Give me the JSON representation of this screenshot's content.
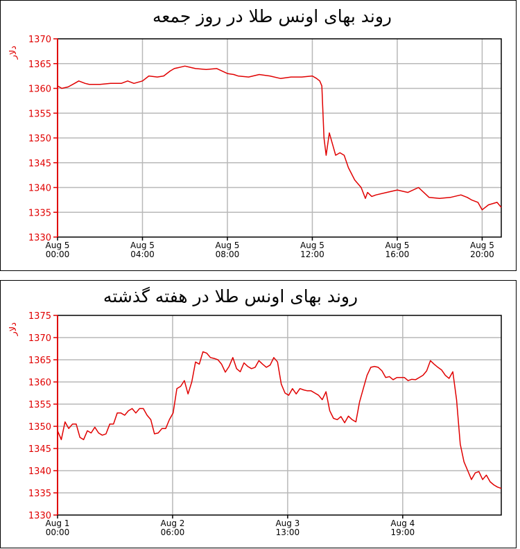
{
  "chart_data": [
    {
      "type": "line",
      "title": "روند بهای اونس طلا در روز جمعه",
      "ylabel": "دلار",
      "xlabel": "",
      "ylim": [
        1330,
        1370
      ],
      "yticks": [
        1330,
        1335,
        1340,
        1345,
        1350,
        1355,
        1360,
        1365,
        1370
      ],
      "xlim": [
        0,
        20.9
      ],
      "xticks": [
        {
          "x": 0,
          "label": [
            "Aug 5",
            "00:00"
          ]
        },
        {
          "x": 4,
          "label": [
            "Aug 5",
            "04:00"
          ]
        },
        {
          "x": 8,
          "label": [
            "Aug 5",
            "08:00"
          ]
        },
        {
          "x": 12,
          "label": [
            "Aug 5",
            "12:00"
          ]
        },
        {
          "x": 16,
          "label": [
            "Aug 5",
            "16:00"
          ]
        },
        {
          "x": 20,
          "label": [
            "Aug 5",
            "20:00"
          ]
        }
      ],
      "grid": true,
      "line_color": "#e00000",
      "x": [
        0,
        0.2,
        0.5,
        0.8,
        1,
        1.3,
        1.5,
        2,
        2.5,
        3,
        3.3,
        3.6,
        4,
        4.3,
        4.7,
        5,
        5.3,
        5.5,
        5.8,
        6,
        6.3,
        6.5,
        7,
        7.5,
        8,
        8.3,
        8.5,
        9,
        9.5,
        10,
        10.5,
        11,
        11.5,
        12,
        12.2,
        12.35,
        12.45,
        12.55,
        12.65,
        12.8,
        13,
        13.1,
        13.3,
        13.5,
        13.7,
        14,
        14.2,
        14.3,
        14.5,
        14.6,
        14.8,
        15,
        15.5,
        16,
        16.5,
        17,
        17.3,
        17.5,
        18,
        18.5,
        19,
        19.3,
        19.5,
        19.8,
        20,
        20.3,
        20.7,
        21
      ],
      "y": [
        1360.5,
        1360,
        1360.3,
        1361,
        1361.5,
        1361,
        1360.8,
        1360.8,
        1361,
        1361,
        1361.5,
        1361,
        1361.5,
        1362.5,
        1362.3,
        1362.5,
        1363.5,
        1364,
        1364.3,
        1364.5,
        1364.2,
        1364,
        1363.8,
        1364,
        1363,
        1362.8,
        1362.5,
        1362.3,
        1362.8,
        1362.5,
        1362,
        1362.3,
        1362.3,
        1362.5,
        1362,
        1361.5,
        1360.5,
        1350,
        1346.5,
        1351,
        1348,
        1346.5,
        1347,
        1346.5,
        1344,
        1341.5,
        1340.5,
        1340,
        1337.8,
        1339,
        1338.2,
        1338.5,
        1339,
        1339.5,
        1339,
        1340,
        1338.8,
        1338,
        1337.8,
        1338,
        1338.5,
        1338,
        1337.5,
        1337,
        1335.5,
        1336.5,
        1337,
        1336
      ]
    },
    {
      "type": "line",
      "title": "روند بهای اونس طلا در هفته گذشته",
      "ylabel": "دلار",
      "xlabel": "",
      "ylim": [
        1330,
        1375
      ],
      "yticks": [
        1330,
        1335,
        1340,
        1345,
        1350,
        1355,
        1360,
        1365,
        1370,
        1375
      ],
      "xticks": [
        {
          "x": 0,
          "label": [
            "Aug 1",
            "00:00"
          ]
        },
        {
          "x": 30,
          "label": [
            "Aug 2",
            "06:00"
          ]
        },
        {
          "x": 60,
          "label": [
            "Aug 3",
            "13:00"
          ]
        },
        {
          "x": 90,
          "label": [
            "Aug 4",
            "19:00"
          ]
        }
      ],
      "xlim": [
        0,
        115.7
      ],
      "grid": true,
      "line_color": "#e00000",
      "y": [
        1349,
        1347,
        1351,
        1349.5,
        1350.5,
        1350.5,
        1347.5,
        1347,
        1349,
        1348.5,
        1349.8,
        1348.5,
        1348,
        1348.3,
        1350.5,
        1350.5,
        1353,
        1353,
        1352.5,
        1353.5,
        1354,
        1353,
        1354,
        1354,
        1352.5,
        1351.5,
        1348.3,
        1348.5,
        1349.5,
        1349.5,
        1351.5,
        1353,
        1358.5,
        1359,
        1360.3,
        1357.3,
        1360,
        1364.5,
        1364,
        1366.8,
        1366.5,
        1365.5,
        1365.3,
        1365,
        1364,
        1362.2,
        1363.5,
        1365.5,
        1363,
        1362.3,
        1364.3,
        1363.5,
        1363,
        1363.3,
        1364.8,
        1364,
        1363.3,
        1363.8,
        1365.5,
        1364.5,
        1359.5,
        1357.5,
        1357,
        1358.5,
        1357.3,
        1358.5,
        1358.2,
        1358,
        1358,
        1357.5,
        1357,
        1356,
        1357.8,
        1353.5,
        1351.8,
        1351.5,
        1352.2,
        1350.8,
        1352.3,
        1351.5,
        1351,
        1355.5,
        1358.5,
        1361.5,
        1363.3,
        1363.5,
        1363.3,
        1362.5,
        1361,
        1361.2,
        1360.5,
        1361,
        1361,
        1361,
        1360.3,
        1360.6,
        1360.5,
        1361,
        1361.5,
        1362.5,
        1364.8,
        1364,
        1363.3,
        1362.7,
        1361.5,
        1360.8,
        1362.3,
        1356,
        1346,
        1342,
        1340,
        1338,
        1339.5,
        1339.8,
        1338,
        1339,
        1337.5,
        1336.8,
        1336.3,
        1336
      ]
    }
  ]
}
